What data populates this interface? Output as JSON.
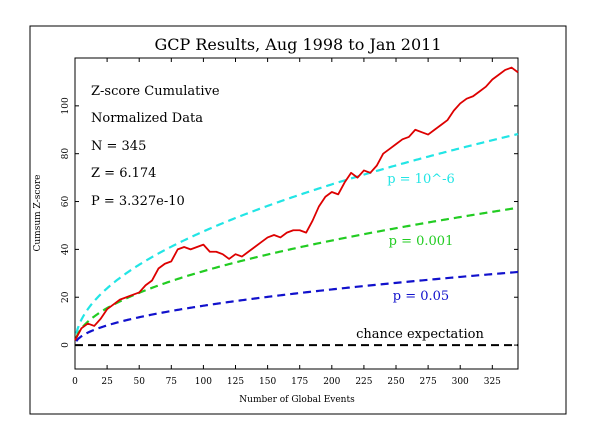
{
  "chart_data": {
    "type": "line",
    "title": "GCP Results, Aug 1998 to Jan 2011",
    "xlabel": "Number of Global Events",
    "ylabel": "Cumsum Z-score",
    "xlim": [
      0,
      345
    ],
    "ylim": [
      -10,
      120
    ],
    "x_ticks": [
      0,
      25,
      50,
      75,
      100,
      125,
      150,
      175,
      200,
      225,
      250,
      275,
      300,
      325
    ],
    "y_ticks": [
      0,
      20,
      40,
      60,
      80,
      100
    ],
    "grid": false,
    "stats": {
      "heading": "Z-score Cumulative",
      "subheading": "Normalized Data",
      "n_text": "N = 345",
      "z_text": "Z = 6.174",
      "p_text": "P = 3.327e-10"
    },
    "reference_curves": [
      {
        "label": "p = 10^-6",
        "z": 4.75,
        "color": "#22e5e5"
      },
      {
        "label": "p = 0.001",
        "z": 3.09,
        "color": "#22cc22"
      },
      {
        "label": "p = 0.05",
        "z": 1.645,
        "color": "#1111cc"
      }
    ],
    "baseline": {
      "label": "chance expectation",
      "value": 0,
      "color": "#000000"
    },
    "series": [
      {
        "color": "#dd0000",
        "x": [
          0,
          5,
          10,
          15,
          20,
          25,
          30,
          35,
          40,
          45,
          50,
          55,
          60,
          65,
          70,
          75,
          80,
          85,
          90,
          95,
          100,
          105,
          110,
          115,
          120,
          125,
          130,
          135,
          140,
          145,
          150,
          155,
          160,
          165,
          170,
          175,
          180,
          185,
          190,
          195,
          200,
          205,
          210,
          215,
          220,
          225,
          230,
          235,
          240,
          245,
          250,
          255,
          260,
          265,
          270,
          275,
          280,
          285,
          290,
          295,
          300,
          305,
          310,
          315,
          320,
          325,
          330,
          335,
          340,
          345
        ],
        "values": [
          2,
          7,
          9,
          8,
          11,
          15,
          17,
          19,
          20,
          21,
          22,
          25,
          27,
          32,
          34,
          35,
          40,
          41,
          40,
          41,
          42,
          39,
          39,
          38,
          36,
          38,
          37,
          39,
          41,
          43,
          45,
          46,
          45,
          47,
          48,
          48,
          47,
          52,
          58,
          62,
          64,
          63,
          68,
          72,
          70,
          73,
          72,
          75,
          80,
          82,
          84,
          86,
          87,
          90,
          89,
          88,
          90,
          92,
          94,
          98,
          101,
          103,
          104,
          106,
          108,
          111,
          113,
          115,
          116,
          114
        ]
      }
    ]
  }
}
